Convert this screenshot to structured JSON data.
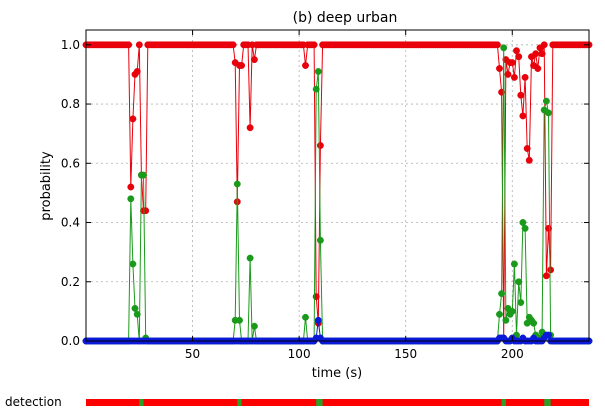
{
  "chart_data": {
    "type": "line",
    "title": "(b) deep urban",
    "xlabel": "time (s)",
    "ylabel": "probability",
    "xlim": [
      0,
      236
    ],
    "ylim": [
      0,
      1.05
    ],
    "xticks": [
      50,
      100,
      150,
      200
    ],
    "yticks": [
      "0.0",
      "0.2",
      "0.4",
      "0.6",
      "0.8",
      "1.0"
    ],
    "grid": true,
    "series": [
      {
        "color": "#e8000b",
        "baseline": 1.0,
        "points": [
          [
            20,
            1.0
          ],
          [
            21,
            0.52
          ],
          [
            22,
            0.75
          ],
          [
            23,
            0.9
          ],
          [
            24,
            0.91
          ],
          [
            25,
            1.0
          ],
          [
            26,
            0.56
          ],
          [
            27,
            0.44
          ],
          [
            28,
            0.44
          ],
          [
            29,
            1.0
          ],
          [
            69,
            1.0
          ],
          [
            70,
            0.94
          ],
          [
            71,
            0.47
          ],
          [
            72,
            0.93
          ],
          [
            73,
            0.93
          ],
          [
            74,
            1.0
          ],
          [
            76,
            1.0
          ],
          [
            77,
            0.72
          ],
          [
            78,
            1.0
          ],
          [
            79,
            0.95
          ],
          [
            80,
            1.0
          ],
          [
            102,
            1.0
          ],
          [
            103,
            0.93
          ],
          [
            104,
            1.0
          ],
          [
            107,
            1.0
          ],
          [
            108,
            0.15
          ],
          [
            109,
            0.06
          ],
          [
            110,
            0.66
          ],
          [
            111,
            1.0
          ],
          [
            193,
            1.0
          ],
          [
            194,
            0.92
          ],
          [
            195,
            0.84
          ],
          [
            196,
            0.01
          ],
          [
            197,
            0.95
          ],
          [
            198,
            0.9
          ],
          [
            199,
            0.94
          ],
          [
            200,
            0.94
          ],
          [
            201,
            0.89
          ],
          [
            202,
            0.98
          ],
          [
            203,
            0.96
          ],
          [
            204,
            0.83
          ],
          [
            205,
            0.76
          ],
          [
            206,
            0.89
          ],
          [
            207,
            0.65
          ],
          [
            208,
            0.61
          ],
          [
            209,
            0.96
          ],
          [
            210,
            0.93
          ],
          [
            211,
            0.97
          ],
          [
            212,
            0.92
          ],
          [
            213,
            0.99
          ],
          [
            214,
            0.97
          ],
          [
            215,
            1.0
          ],
          [
            216,
            0.22
          ],
          [
            217,
            0.38
          ],
          [
            218,
            0.24
          ],
          [
            219,
            1.0
          ]
        ]
      },
      {
        "color": "#1a9a1a",
        "baseline": 0.0,
        "points": [
          [
            20,
            0.0
          ],
          [
            21,
            0.48
          ],
          [
            22,
            0.26
          ],
          [
            23,
            0.11
          ],
          [
            24,
            0.09
          ],
          [
            25,
            0.0
          ],
          [
            26,
            0.56
          ],
          [
            27,
            0.56
          ],
          [
            28,
            0.01
          ],
          [
            29,
            0.0
          ],
          [
            69,
            0.0
          ],
          [
            70,
            0.07
          ],
          [
            71,
            0.53
          ],
          [
            72,
            0.07
          ],
          [
            73,
            0.0
          ],
          [
            76,
            0.0
          ],
          [
            77,
            0.28
          ],
          [
            78,
            0.0
          ],
          [
            79,
            0.05
          ],
          [
            80,
            0.0
          ],
          [
            102,
            0.0
          ],
          [
            103,
            0.08
          ],
          [
            104,
            0.0
          ],
          [
            107,
            0.0
          ],
          [
            108,
            0.85
          ],
          [
            109,
            0.91
          ],
          [
            110,
            0.34
          ],
          [
            111,
            0.0
          ],
          [
            193,
            0.0
          ],
          [
            194,
            0.09
          ],
          [
            195,
            0.16
          ],
          [
            196,
            0.99
          ],
          [
            197,
            0.07
          ],
          [
            198,
            0.11
          ],
          [
            199,
            0.09
          ],
          [
            200,
            0.1
          ],
          [
            201,
            0.26
          ],
          [
            202,
            0.02
          ],
          [
            203,
            0.2
          ],
          [
            204,
            0.13
          ],
          [
            205,
            0.4
          ],
          [
            206,
            0.38
          ],
          [
            207,
            0.06
          ],
          [
            208,
            0.08
          ],
          [
            209,
            0.07
          ],
          [
            210,
            0.06
          ],
          [
            211,
            0.02
          ],
          [
            212,
            0.0
          ],
          [
            213,
            0.01
          ],
          [
            214,
            0.03
          ],
          [
            215,
            0.78
          ],
          [
            216,
            0.81
          ],
          [
            217,
            0.77
          ],
          [
            218,
            0.02
          ],
          [
            219,
            0.0
          ]
        ]
      },
      {
        "color": "#0b1ad8",
        "baseline": 0.0,
        "points": [
          [
            108,
            0.01
          ],
          [
            109,
            0.07
          ],
          [
            110,
            0.01
          ],
          [
            193,
            0.0
          ],
          [
            194,
            0.01
          ],
          [
            195,
            0.01
          ],
          [
            196,
            0.01
          ],
          [
            200,
            0.01
          ],
          [
            205,
            0.01
          ],
          [
            210,
            0.01
          ],
          [
            215,
            0.01
          ],
          [
            216,
            0.02
          ],
          [
            217,
            0.02
          ],
          [
            218,
            0.0
          ]
        ]
      }
    ],
    "detection_bar": {
      "label": "detection",
      "base_color": "#ff0000",
      "marks": [
        {
          "start": 25,
          "end": 27,
          "color": "#2aa02a"
        },
        {
          "start": 71,
          "end": 73,
          "color": "#2aa02a"
        },
        {
          "start": 108,
          "end": 111,
          "color": "#2aa02a"
        },
        {
          "start": 195,
          "end": 197,
          "color": "#2aa02a"
        },
        {
          "start": 215,
          "end": 218,
          "color": "#2aa02a"
        }
      ]
    }
  }
}
